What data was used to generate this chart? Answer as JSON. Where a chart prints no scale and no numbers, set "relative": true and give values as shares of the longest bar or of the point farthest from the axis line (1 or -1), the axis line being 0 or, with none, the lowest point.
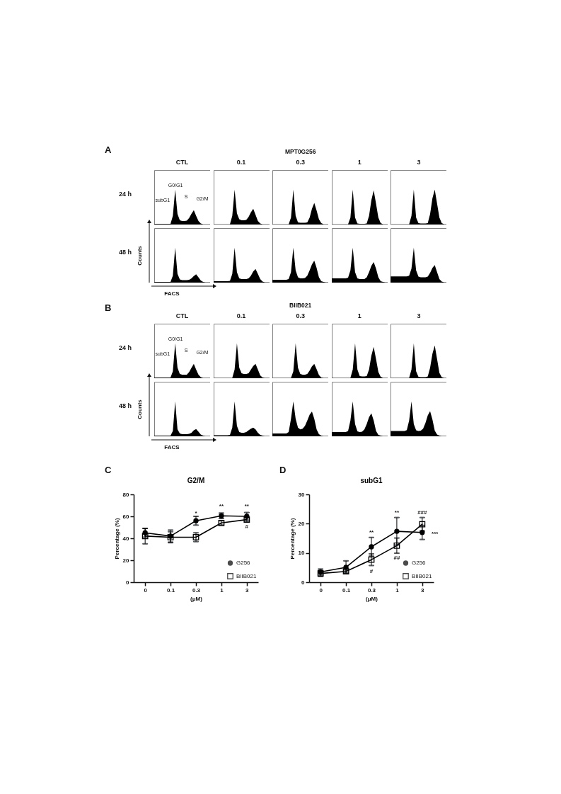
{
  "chart_data": [
    {
      "type": "area",
      "relative": true,
      "title": "CTL",
      "ylabel": "24 h",
      "color": "#000000",
      "annotations": [
        "A",
        "subG1",
        "G0/G1",
        "S",
        "G2/M"
      ],
      "categories": [
        null,
        null,
        null,
        null,
        null,
        null,
        null,
        null,
        null,
        null,
        null,
        null,
        null,
        null,
        null,
        null,
        null,
        null,
        null,
        null,
        null,
        null,
        null,
        null,
        null
      ],
      "values": [
        0.02,
        0.02,
        0.02,
        0.02,
        0.02,
        0.02,
        0.02,
        0.02,
        0.25,
        1,
        0.3,
        0.12,
        0.1,
        0.1,
        0.11,
        0.19,
        0.31,
        0.41,
        0.25,
        0.1,
        0.03,
        0.01,
        0.01,
        0.01,
        0.01
      ]
    },
    {
      "type": "area",
      "relative": true,
      "title": "0.1",
      "color": "#000000",
      "categories": [
        null,
        null,
        null,
        null,
        null,
        null,
        null,
        null,
        null,
        null,
        null,
        null,
        null,
        null,
        null,
        null,
        null,
        null,
        null,
        null,
        null,
        null,
        null,
        null,
        null
      ],
      "values": [
        0.01,
        0.01,
        0.01,
        0.01,
        0.01,
        0.01,
        0.01,
        0.01,
        0.25,
        1,
        0.32,
        0.15,
        0.12,
        0.12,
        0.13,
        0.22,
        0.35,
        0.45,
        0.28,
        0.1,
        0.03,
        0.01,
        0.01,
        0.01,
        0.01
      ]
    },
    {
      "type": "area",
      "relative": true,
      "title": "0.3",
      "subtitle": "MPT0G256",
      "color": "#000000",
      "categories": [
        null,
        null,
        null,
        null,
        null,
        null,
        null,
        null,
        null,
        null,
        null,
        null,
        null,
        null,
        null,
        null,
        null,
        null,
        null,
        null,
        null,
        null,
        null,
        null,
        null
      ],
      "values": [
        0.01,
        0.01,
        0.01,
        0.01,
        0.01,
        0.01,
        0.01,
        0.01,
        0.2,
        1,
        0.25,
        0.06,
        0.05,
        0.05,
        0.05,
        0.06,
        0.2,
        0.45,
        0.62,
        0.4,
        0.15,
        0.04,
        0.01,
        0.01,
        0.01
      ]
    },
    {
      "type": "area",
      "relative": true,
      "title": "1",
      "color": "#000000",
      "categories": [
        null,
        null,
        null,
        null,
        null,
        null,
        null,
        null,
        null,
        null,
        null,
        null,
        null,
        null,
        null,
        null,
        null,
        null,
        null,
        null,
        null,
        null,
        null,
        null,
        null
      ],
      "values": [
        0.01,
        0.01,
        0.01,
        0.01,
        0.01,
        0.01,
        0.01,
        0.01,
        0.2,
        1,
        0.2,
        0.03,
        0.02,
        0.02,
        0.02,
        0.03,
        0.25,
        0.7,
        0.98,
        0.6,
        0.2,
        0.04,
        0.01,
        0.01,
        0.01
      ]
    },
    {
      "type": "area",
      "relative": true,
      "title": "3",
      "color": "#000000",
      "categories": [
        null,
        null,
        null,
        null,
        null,
        null,
        null,
        null,
        null,
        null,
        null,
        null,
        null,
        null,
        null,
        null,
        null,
        null,
        null,
        null,
        null,
        null,
        null,
        null,
        null
      ],
      "values": [
        0.01,
        0.01,
        0.01,
        0.01,
        0.01,
        0.01,
        0.01,
        0.01,
        0.01,
        0.25,
        1,
        0.2,
        0.04,
        0.03,
        0.03,
        0.03,
        0.04,
        0.3,
        0.75,
        1,
        0.6,
        0.2,
        0.04,
        0.01,
        0.01
      ]
    },
    {
      "type": "area",
      "relative": true,
      "ylabel": "48 h",
      "color": "#000000",
      "annotations": [
        "Counts",
        "FACS"
      ],
      "categories": [
        null,
        null,
        null,
        null,
        null,
        null,
        null,
        null,
        null,
        null,
        null,
        null,
        null,
        null,
        null,
        null,
        null,
        null,
        null,
        null,
        null,
        null,
        null,
        null,
        null
      ],
      "values": [
        0.02,
        0.02,
        0.02,
        0.02,
        0.02,
        0.02,
        0.02,
        0.02,
        0.2,
        1,
        0.25,
        0.09,
        0.07,
        0.07,
        0.07,
        0.08,
        0.12,
        0.19,
        0.24,
        0.15,
        0.06,
        0.02,
        0.01,
        0.01,
        0.01
      ]
    },
    {
      "type": "area",
      "relative": true,
      "color": "#000000",
      "categories": [
        null,
        null,
        null,
        null,
        null,
        null,
        null,
        null,
        null,
        null,
        null,
        null,
        null,
        null,
        null,
        null,
        null,
        null,
        null,
        null,
        null,
        null,
        null,
        null,
        null
      ],
      "values": [
        0.04,
        0.04,
        0.04,
        0.04,
        0.04,
        0.04,
        0.04,
        0.05,
        0.25,
        1,
        0.3,
        0.12,
        0.1,
        0.1,
        0.1,
        0.12,
        0.2,
        0.32,
        0.39,
        0.25,
        0.1,
        0.03,
        0.01,
        0.01,
        0.01
      ]
    },
    {
      "type": "area",
      "relative": true,
      "color": "#000000",
      "categories": [
        null,
        null,
        null,
        null,
        null,
        null,
        null,
        null,
        null,
        null,
        null,
        null,
        null,
        null,
        null,
        null,
        null,
        null,
        null,
        null,
        null,
        null,
        null,
        null,
        null
      ],
      "values": [
        0.08,
        0.08,
        0.08,
        0.08,
        0.08,
        0.08,
        0.08,
        0.1,
        0.3,
        1,
        0.35,
        0.15,
        0.12,
        0.12,
        0.13,
        0.2,
        0.35,
        0.52,
        0.63,
        0.42,
        0.15,
        0.04,
        0.02,
        0.01,
        0.01
      ]
    },
    {
      "type": "area",
      "relative": true,
      "color": "#000000",
      "categories": [
        null,
        null,
        null,
        null,
        null,
        null,
        null,
        null,
        null,
        null,
        null,
        null,
        null,
        null,
        null,
        null,
        null,
        null,
        null,
        null,
        null,
        null,
        null,
        null,
        null
      ],
      "values": [
        0.12,
        0.12,
        0.12,
        0.12,
        0.12,
        0.12,
        0.12,
        0.14,
        0.35,
        1,
        0.3,
        0.12,
        0.1,
        0.1,
        0.1,
        0.15,
        0.3,
        0.48,
        0.59,
        0.4,
        0.15,
        0.04,
        0.02,
        0.01,
        0.01
      ]
    },
    {
      "type": "area",
      "relative": true,
      "color": "#000000",
      "categories": [
        null,
        null,
        null,
        null,
        null,
        null,
        null,
        null,
        null,
        null,
        null,
        null,
        null,
        null,
        null,
        null,
        null,
        null,
        null,
        null,
        null,
        null,
        null,
        null,
        null
      ],
      "values": [
        0.18,
        0.18,
        0.18,
        0.18,
        0.18,
        0.18,
        0.18,
        0.18,
        0.2,
        0.4,
        1,
        0.35,
        0.17,
        0.15,
        0.15,
        0.15,
        0.17,
        0.28,
        0.42,
        0.5,
        0.3,
        0.1,
        0.03,
        0.01,
        0.01
      ]
    },
    {
      "type": "area",
      "relative": true,
      "title": "CTL",
      "ylabel": "24 h",
      "color": "#000000",
      "annotations": [
        "B",
        "subG1",
        "G0/G1",
        "S",
        "G2/M"
      ],
      "categories": [
        null,
        null,
        null,
        null,
        null,
        null,
        null,
        null,
        null,
        null,
        null,
        null,
        null,
        null,
        null,
        null,
        null,
        null,
        null,
        null,
        null,
        null,
        null,
        null,
        null
      ],
      "values": [
        0.02,
        0.02,
        0.02,
        0.02,
        0.02,
        0.02,
        0.02,
        0.02,
        0.2,
        1,
        0.3,
        0.12,
        0.1,
        0.1,
        0.1,
        0.18,
        0.3,
        0.41,
        0.25,
        0.1,
        0.03,
        0.01,
        0.01,
        0.01,
        0.01
      ]
    },
    {
      "type": "area",
      "relative": true,
      "title": "0.1",
      "color": "#000000",
      "categories": [
        null,
        null,
        null,
        null,
        null,
        null,
        null,
        null,
        null,
        null,
        null,
        null,
        null,
        null,
        null,
        null,
        null,
        null,
        null,
        null,
        null,
        null,
        null,
        null,
        null
      ],
      "values": [
        0.01,
        0.01,
        0.01,
        0.01,
        0.01,
        0.01,
        0.01,
        0.01,
        0.01,
        0.25,
        1,
        0.3,
        0.14,
        0.12,
        0.12,
        0.14,
        0.25,
        0.35,
        0.41,
        0.25,
        0.08,
        0.02,
        0.01,
        0.01,
        0.01
      ]
    },
    {
      "type": "area",
      "relative": true,
      "title": "0.3",
      "subtitle": "BIIB021",
      "color": "#000000",
      "categories": [
        null,
        null,
        null,
        null,
        null,
        null,
        null,
        null,
        null,
        null,
        null,
        null,
        null,
        null,
        null,
        null,
        null,
        null,
        null,
        null,
        null,
        null,
        null,
        null,
        null
      ],
      "values": [
        0.01,
        0.01,
        0.01,
        0.01,
        0.01,
        0.01,
        0.01,
        0.01,
        0.01,
        0.2,
        1,
        0.3,
        0.12,
        0.1,
        0.1,
        0.12,
        0.22,
        0.34,
        0.41,
        0.26,
        0.09,
        0.02,
        0.01,
        0.01,
        0.01
      ]
    },
    {
      "type": "area",
      "relative": true,
      "title": "1",
      "color": "#000000",
      "categories": [
        null,
        null,
        null,
        null,
        null,
        null,
        null,
        null,
        null,
        null,
        null,
        null,
        null,
        null,
        null,
        null,
        null,
        null,
        null,
        null,
        null,
        null,
        null,
        null,
        null
      ],
      "values": [
        0.01,
        0.01,
        0.01,
        0.01,
        0.01,
        0.01,
        0.01,
        0.01,
        0.01,
        0.25,
        1,
        0.25,
        0.06,
        0.05,
        0.05,
        0.06,
        0.25,
        0.65,
        0.9,
        0.55,
        0.18,
        0.04,
        0.01,
        0.01,
        0.01
      ]
    },
    {
      "type": "area",
      "relative": true,
      "title": "3",
      "color": "#000000",
      "categories": [
        null,
        null,
        null,
        null,
        null,
        null,
        null,
        null,
        null,
        null,
        null,
        null,
        null,
        null,
        null,
        null,
        null,
        null,
        null,
        null,
        null,
        null,
        null,
        null,
        null
      ],
      "values": [
        0.01,
        0.01,
        0.01,
        0.01,
        0.01,
        0.01,
        0.01,
        0.01,
        0.01,
        0.25,
        1,
        0.2,
        0.04,
        0.03,
        0.03,
        0.03,
        0.05,
        0.3,
        0.7,
        0.94,
        0.55,
        0.15,
        0.03,
        0.01,
        0.01
      ]
    },
    {
      "type": "area",
      "relative": true,
      "ylabel": "48 h",
      "color": "#000000",
      "annotations": [
        "Counts",
        "FACS"
      ],
      "categories": [
        null,
        null,
        null,
        null,
        null,
        null,
        null,
        null,
        null,
        null,
        null,
        null,
        null,
        null,
        null,
        null,
        null,
        null,
        null,
        null,
        null,
        null,
        null,
        null,
        null
      ],
      "values": [
        0.02,
        0.02,
        0.02,
        0.02,
        0.02,
        0.02,
        0.02,
        0.02,
        0.15,
        1,
        0.2,
        0.08,
        0.06,
        0.06,
        0.06,
        0.07,
        0.1,
        0.17,
        0.21,
        0.13,
        0.05,
        0.02,
        0.01,
        0.01,
        0.01
      ]
    },
    {
      "type": "area",
      "relative": true,
      "color": "#000000",
      "categories": [
        null,
        null,
        null,
        null,
        null,
        null,
        null,
        null,
        null,
        null,
        null,
        null,
        null,
        null,
        null,
        null,
        null,
        null,
        null,
        null,
        null,
        null,
        null,
        null,
        null
      ],
      "values": [
        0.03,
        0.03,
        0.03,
        0.03,
        0.03,
        0.03,
        0.03,
        0.04,
        0.25,
        1,
        0.3,
        0.12,
        0.1,
        0.1,
        0.12,
        0.17,
        0.22,
        0.25,
        0.2,
        0.1,
        0.04,
        0.02,
        0.01,
        0.01,
        0.01
      ]
    },
    {
      "type": "area",
      "relative": true,
      "color": "#000000",
      "categories": [
        null,
        null,
        null,
        null,
        null,
        null,
        null,
        null,
        null,
        null,
        null,
        null,
        null,
        null,
        null,
        null,
        null,
        null,
        null,
        null,
        null,
        null,
        null,
        null,
        null
      ],
      "values": [
        0.08,
        0.08,
        0.08,
        0.08,
        0.08,
        0.08,
        0.08,
        0.12,
        0.5,
        1,
        0.5,
        0.25,
        0.2,
        0.22,
        0.3,
        0.45,
        0.62,
        0.71,
        0.5,
        0.2,
        0.06,
        0.02,
        0.01,
        0.01,
        0.01
      ]
    },
    {
      "type": "area",
      "relative": true,
      "color": "#000000",
      "categories": [
        null,
        null,
        null,
        null,
        null,
        null,
        null,
        null,
        null,
        null,
        null,
        null,
        null,
        null,
        null,
        null,
        null,
        null,
        null,
        null,
        null,
        null,
        null,
        null,
        null
      ],
      "values": [
        0.12,
        0.12,
        0.12,
        0.12,
        0.12,
        0.12,
        0.12,
        0.15,
        0.45,
        1,
        0.35,
        0.14,
        0.12,
        0.13,
        0.2,
        0.35,
        0.55,
        0.66,
        0.45,
        0.15,
        0.04,
        0.02,
        0.01,
        0.01,
        0.01
      ]
    },
    {
      "type": "area",
      "relative": true,
      "color": "#000000",
      "categories": [
        null,
        null,
        null,
        null,
        null,
        null,
        null,
        null,
        null,
        null,
        null,
        null,
        null,
        null,
        null,
        null,
        null,
        null,
        null,
        null,
        null,
        null,
        null,
        null,
        null
      ],
      "values": [
        0.15,
        0.15,
        0.15,
        0.15,
        0.15,
        0.15,
        0.15,
        0.18,
        0.45,
        1,
        0.35,
        0.17,
        0.15,
        0.16,
        0.22,
        0.38,
        0.6,
        0.72,
        0.48,
        0.16,
        0.05,
        0.02,
        0.01,
        0.01,
        0.01
      ]
    },
    {
      "type": "line",
      "title": "G2/M",
      "xlabel": "(μM)",
      "ylabel": "Percentage (%)",
      "categories": [
        "0",
        "0.1",
        "0.3",
        "1",
        "3"
      ],
      "ylim": [
        0,
        80
      ],
      "yticks": [
        0,
        20,
        40,
        60,
        80
      ],
      "legend": "bottom right",
      "series": [
        {
          "name": "G256",
          "color": "#000000",
          "marker": "circle",
          "values": [
            45,
            42,
            56,
            60.5,
            60
          ],
          "errors": [
            4,
            5.5,
            4,
            2.5,
            3.5
          ]
        },
        {
          "name": "BIIB021",
          "color": "#000000",
          "marker": "square",
          "values": [
            42,
            41,
            41,
            54,
            57
          ],
          "errors": [
            7,
            5,
            4,
            2,
            2
          ]
        }
      ],
      "annotations": [
        "C",
        "*",
        "**",
        "**",
        "#"
      ]
    },
    {
      "type": "line",
      "title": "subG1",
      "xlabel": "(μM)",
      "ylabel": "Percentage (%)",
      "categories": [
        "0",
        "0.1",
        "0.3",
        "1",
        "3"
      ],
      "ylim": [
        0,
        30
      ],
      "yticks": [
        0,
        10,
        20,
        30
      ],
      "legend": "bottom right",
      "series": [
        {
          "name": "G256",
          "color": "#000000",
          "marker": "circle",
          "values": [
            3.5,
            5.1,
            12.1,
            17.4,
            17
          ],
          "errors": [
            1,
            2.2,
            3.2,
            4.7,
            2.4
          ]
        },
        {
          "name": "BIIB021",
          "color": "#000000",
          "marker": "square",
          "values": [
            3,
            3.7,
            7.7,
            12.5,
            19.8
          ],
          "errors": [
            1,
            0.5,
            2,
            2.6,
            2.3
          ]
        }
      ],
      "annotations": [
        "D",
        "***",
        "**",
        "#",
        "**",
        "##",
        "###"
      ]
    }
  ]
}
